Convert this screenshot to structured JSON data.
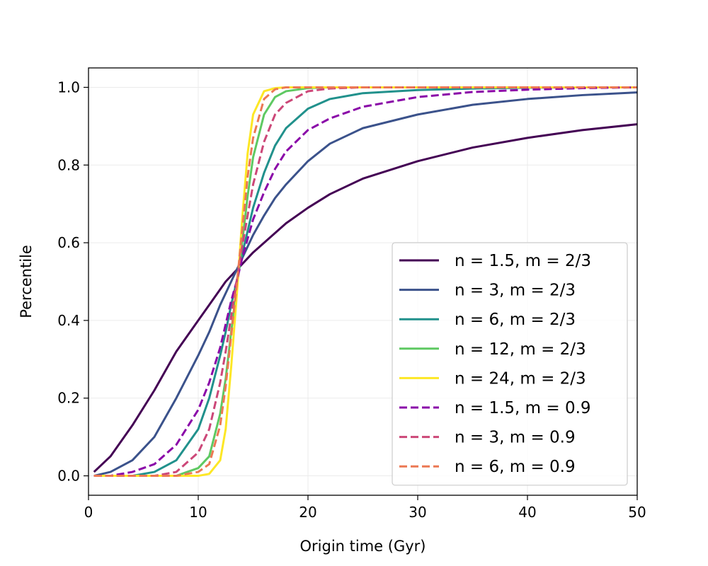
{
  "chart_data": {
    "type": "line",
    "title": "",
    "xlabel": "Origin time (Gyr)",
    "ylabel": "Percentile",
    "xlim": [
      0,
      50
    ],
    "ylim": [
      -0.05,
      1.05
    ],
    "x_ticks": [
      0,
      10,
      20,
      30,
      40,
      50
    ],
    "y_ticks": [
      0.0,
      0.2,
      0.4,
      0.6,
      0.8,
      1.0
    ],
    "x_tick_labels": [
      "0",
      "10",
      "20",
      "30",
      "40",
      "50"
    ],
    "y_tick_labels": [
      "0.0",
      "0.2",
      "0.4",
      "0.6",
      "0.8",
      "1.0"
    ],
    "grid": true,
    "legend_position": "lower-right",
    "x": [
      0.5,
      2,
      4,
      6,
      8,
      10,
      11,
      12,
      12.5,
      13,
      13.5,
      14,
      14.5,
      15,
      16,
      17,
      18,
      20,
      22,
      25,
      30,
      35,
      40,
      45,
      50
    ],
    "series": [
      {
        "name": "n = 1.5, m = 2/3",
        "color": "#440154",
        "dash": "solid",
        "values": [
          0.01,
          0.05,
          0.13,
          0.22,
          0.32,
          0.4,
          0.44,
          0.48,
          0.5,
          0.515,
          0.53,
          0.545,
          0.56,
          0.575,
          0.6,
          0.625,
          0.65,
          0.69,
          0.725,
          0.765,
          0.81,
          0.845,
          0.87,
          0.89,
          0.905
        ]
      },
      {
        "name": "n = 3, m = 2/3",
        "color": "#3b528b",
        "dash": "solid",
        "values": [
          0.0,
          0.01,
          0.04,
          0.1,
          0.2,
          0.31,
          0.37,
          0.44,
          0.47,
          0.5,
          0.53,
          0.56,
          0.59,
          0.62,
          0.67,
          0.715,
          0.75,
          0.81,
          0.855,
          0.895,
          0.93,
          0.955,
          0.97,
          0.98,
          0.987
        ]
      },
      {
        "name": "n = 6, m = 2/3",
        "color": "#21918c",
        "dash": "solid",
        "values": [
          0.0,
          0.0,
          0.0,
          0.01,
          0.04,
          0.12,
          0.2,
          0.31,
          0.37,
          0.44,
          0.5,
          0.57,
          0.63,
          0.69,
          0.78,
          0.85,
          0.895,
          0.945,
          0.97,
          0.985,
          0.993,
          0.997,
          0.999,
          1.0,
          1.0
        ]
      },
      {
        "name": "n = 12, m = 2/3",
        "color": "#5ec962",
        "dash": "solid",
        "values": [
          0.0,
          0.0,
          0.0,
          0.0,
          0.0,
          0.02,
          0.05,
          0.16,
          0.25,
          0.37,
          0.48,
          0.6,
          0.72,
          0.82,
          0.93,
          0.975,
          0.99,
          0.998,
          1.0,
          1.0,
          1.0,
          1.0,
          1.0,
          1.0,
          1.0
        ]
      },
      {
        "name": "n = 24, m = 2/3",
        "color": "#fde725",
        "dash": "solid",
        "values": [
          0.0,
          0.0,
          0.0,
          0.0,
          0.0,
          0.0,
          0.005,
          0.04,
          0.12,
          0.28,
          0.46,
          0.66,
          0.83,
          0.93,
          0.99,
          0.998,
          1.0,
          1.0,
          1.0,
          1.0,
          1.0,
          1.0,
          1.0,
          1.0,
          1.0
        ]
      },
      {
        "name": "n = 1.5, m = 0.9",
        "color": "#8a07a8",
        "dash": "dashed",
        "values": [
          0.0,
          0.0,
          0.01,
          0.03,
          0.08,
          0.17,
          0.24,
          0.33,
          0.39,
          0.45,
          0.5,
          0.56,
          0.61,
          0.66,
          0.73,
          0.79,
          0.835,
          0.89,
          0.92,
          0.95,
          0.975,
          0.988,
          0.994,
          0.998,
          1.0
        ]
      },
      {
        "name": "n = 3, m = 0.9",
        "color": "#cc4778",
        "dash": "dashed",
        "values": [
          0.0,
          0.0,
          0.0,
          0.0,
          0.01,
          0.06,
          0.12,
          0.24,
          0.32,
          0.41,
          0.5,
          0.59,
          0.67,
          0.75,
          0.86,
          0.93,
          0.96,
          0.99,
          0.997,
          1.0,
          1.0,
          1.0,
          1.0,
          1.0,
          1.0
        ]
      },
      {
        "name": "n = 6, m = 0.9",
        "color": "#ec7853",
        "dash": "dashed",
        "values": [
          0.0,
          0.0,
          0.0,
          0.0,
          0.0,
          0.01,
          0.03,
          0.13,
          0.23,
          0.36,
          0.49,
          0.63,
          0.77,
          0.87,
          0.97,
          0.995,
          1.0,
          1.0,
          1.0,
          1.0,
          1.0,
          1.0,
          1.0,
          1.0,
          1.0
        ]
      }
    ]
  }
}
